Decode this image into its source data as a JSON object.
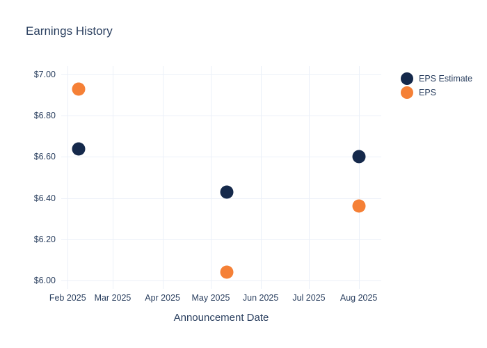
{
  "chart_data": {
    "type": "scatter",
    "title": "Earnings History",
    "xlabel": "Announcement Date",
    "ylabel": "",
    "grid": true,
    "legend_position": "right",
    "background_color": "#ffffff",
    "grid_color": "#ebf0f8",
    "text_color": "#2a3f5f",
    "x_range": [
      "2025-01-28",
      "2025-08-15"
    ],
    "y_range": [
      5.96,
      7.04
    ],
    "x_ticks": [
      {
        "date": "2025-02-01",
        "label": "Feb 2025"
      },
      {
        "date": "2025-03-01",
        "label": "Mar 2025"
      },
      {
        "date": "2025-04-01",
        "label": "Apr 2025"
      },
      {
        "date": "2025-05-01",
        "label": "May 2025"
      },
      {
        "date": "2025-06-01",
        "label": "Jun 2025"
      },
      {
        "date": "2025-07-01",
        "label": "Jul 2025"
      },
      {
        "date": "2025-08-01",
        "label": "Aug 2025"
      }
    ],
    "y_ticks": [
      {
        "value": 7.0,
        "label": "$7.00"
      },
      {
        "value": 6.8,
        "label": "$6.80"
      },
      {
        "value": 6.6,
        "label": "$6.60"
      },
      {
        "value": 6.4,
        "label": "$6.40"
      },
      {
        "value": 6.2,
        "label": "$6.20"
      },
      {
        "value": 6.0,
        "label": "$6.00"
      }
    ],
    "x_dates": [
      "2025-02-08",
      "2025-05-11",
      "2025-08-01"
    ],
    "series": [
      {
        "name": "EPS Estimate",
        "color": "#15294b",
        "values": [
          6.64,
          6.43,
          6.6
        ]
      },
      {
        "name": "EPS",
        "color": "#f58036",
        "values": [
          6.93,
          6.04,
          6.36
        ]
      }
    ]
  }
}
